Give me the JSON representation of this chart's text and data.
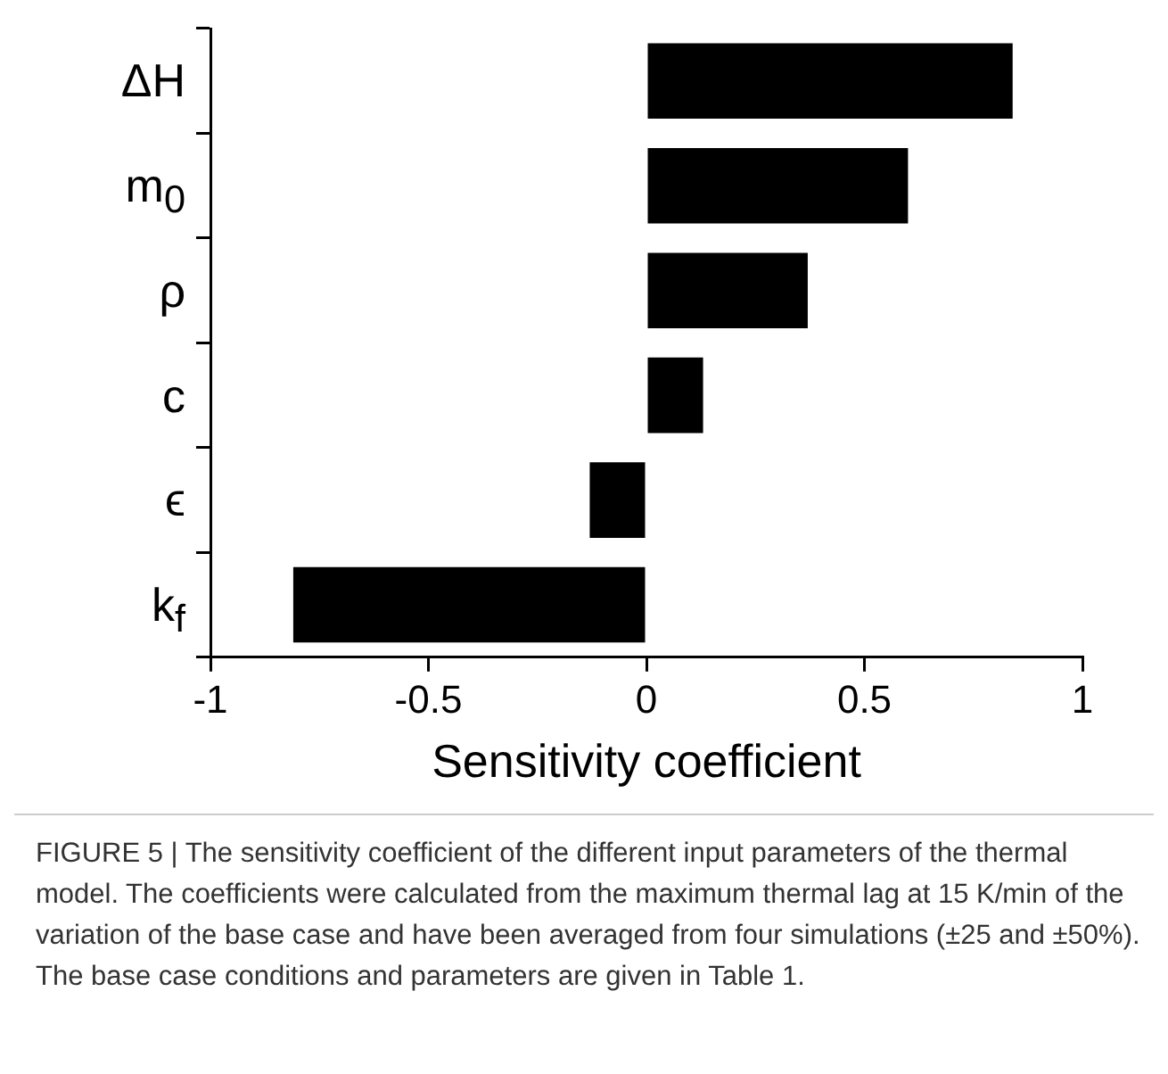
{
  "chart_data": {
    "type": "bar",
    "orientation": "horizontal",
    "categories": [
      "ΔH",
      "m$_{0}$",
      "ρ",
      "c",
      "ϵ",
      "k$_{f}$"
    ],
    "values": [
      0.84,
      0.6,
      0.37,
      0.13,
      -0.13,
      -0.81
    ],
    "color": "#000000",
    "xlim": [
      -1,
      1
    ],
    "xticks": [
      -1,
      -0.5,
      0,
      0.5,
      1
    ],
    "xlabel": "Sensitivity coefficient",
    "grid": false,
    "legend": false,
    "annotations": [
      "FIGURE 5 | The sensitivity coefficient of the different input parameters of the thermal model. The coefficients were calculated from the maximum thermal lag at 15 K/min of the variation of the base case and have been averaged from four simulations (±25 and ±50%). The base case conditions and parameters are given in Table 1."
    ]
  }
}
